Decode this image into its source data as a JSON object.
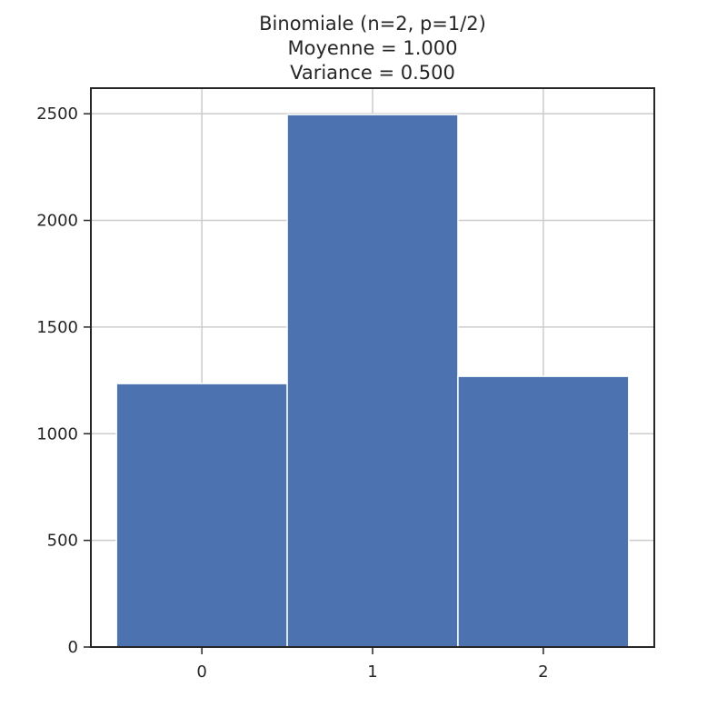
{
  "chart_data": {
    "type": "bar",
    "title_lines": [
      "Binomiale (n=2, p=1/2)",
      "Moyenne =  1.000",
      "Variance =  0.500"
    ],
    "categories": [
      "0",
      "1",
      "2"
    ],
    "x": [
      0,
      1,
      2
    ],
    "values": [
      1235,
      2496,
      1269
    ],
    "bar_width": 1.0,
    "xlim": [
      -0.65,
      2.65
    ],
    "ylim": [
      0,
      2620
    ],
    "yticks": [
      0,
      500,
      1000,
      1500,
      2000,
      2500
    ],
    "xlabel": "",
    "ylabel": "",
    "grid": true,
    "colors": {
      "bar": "#4c72b0",
      "bar_edge": "#ffffff",
      "grid": "#cccccc",
      "axes": "#262626",
      "text": "#262626",
      "background": "#ffffff"
    }
  }
}
